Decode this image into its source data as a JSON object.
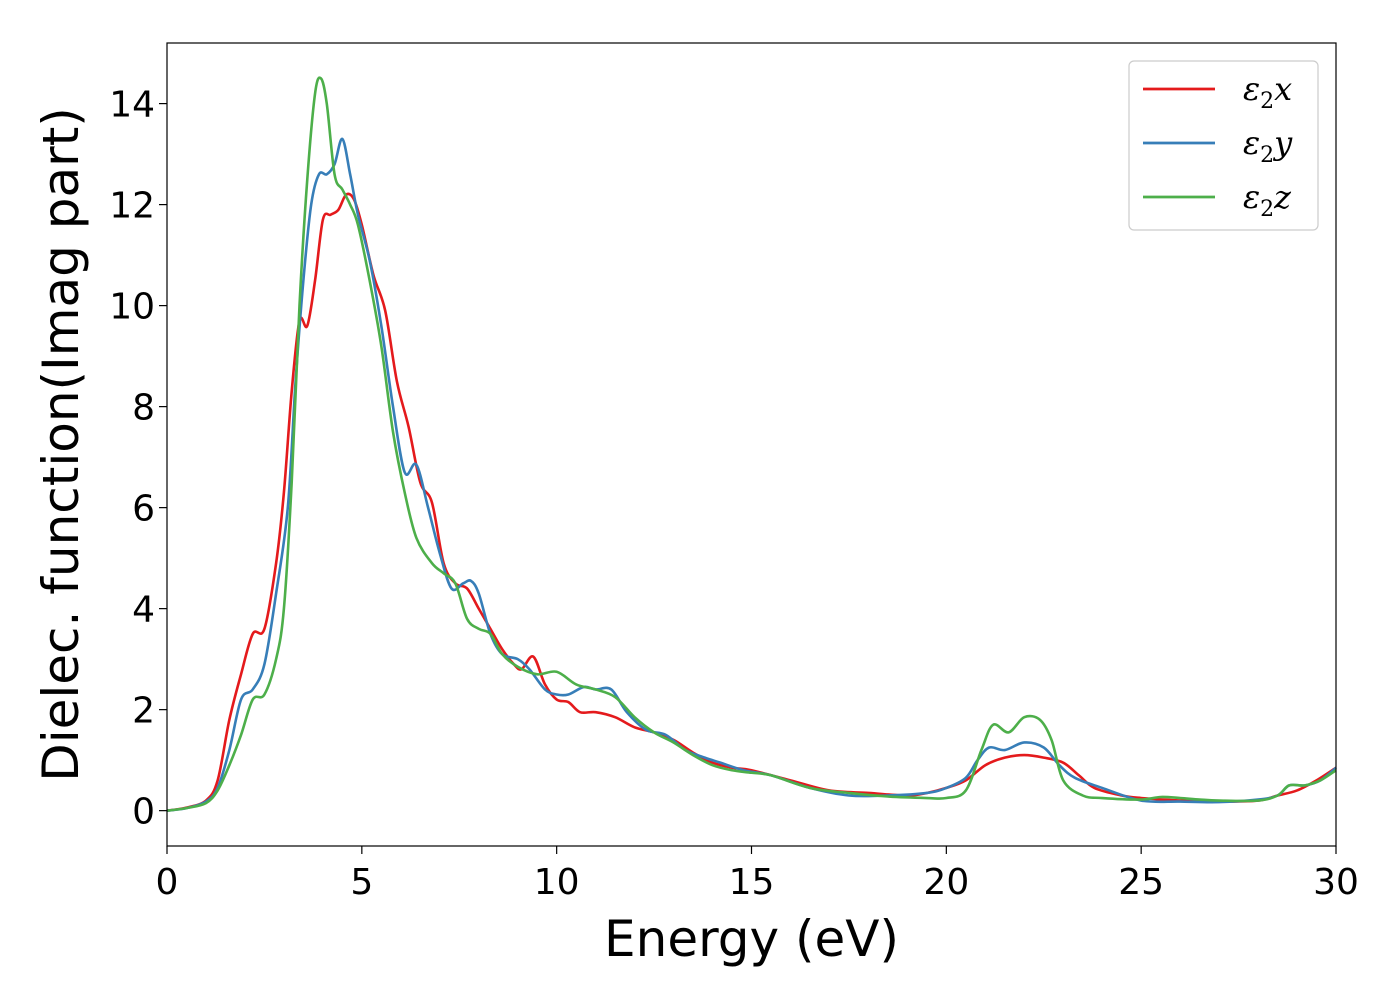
{
  "chart_data": {
    "type": "line",
    "title": "",
    "xlabel": "Energy (eV)",
    "ylabel": "Dielec. function(Imag part)",
    "xlim": [
      0,
      30
    ],
    "ylim": [
      -0.7,
      15.2
    ],
    "xticks": [
      0,
      5,
      10,
      15,
      20,
      25,
      30
    ],
    "yticks": [
      0,
      2,
      4,
      6,
      8,
      10,
      12,
      14
    ],
    "grid": false,
    "legend_position": "top-right",
    "series": [
      {
        "name": "ε₂x",
        "legend_main": "ε",
        "legend_sub": "2",
        "legend_suffix": "x",
        "color": "#e41a1c",
        "points": [
          [
            0,
            0
          ],
          [
            0.5,
            0.06
          ],
          [
            1.0,
            0.2
          ],
          [
            1.3,
            0.6
          ],
          [
            1.6,
            1.8
          ],
          [
            1.9,
            2.7
          ],
          [
            2.2,
            3.5
          ],
          [
            2.5,
            3.6
          ],
          [
            2.8,
            4.9
          ],
          [
            3.0,
            6.3
          ],
          [
            3.2,
            8.3
          ],
          [
            3.4,
            9.7
          ],
          [
            3.6,
            9.6
          ],
          [
            3.8,
            10.5
          ],
          [
            4.0,
            11.7
          ],
          [
            4.2,
            11.8
          ],
          [
            4.4,
            11.9
          ],
          [
            4.6,
            12.2
          ],
          [
            4.8,
            12.1
          ],
          [
            5.0,
            11.6
          ],
          [
            5.3,
            10.6
          ],
          [
            5.6,
            9.9
          ],
          [
            5.9,
            8.5
          ],
          [
            6.2,
            7.6
          ],
          [
            6.5,
            6.5
          ],
          [
            6.8,
            6.1
          ],
          [
            7.1,
            4.9
          ],
          [
            7.4,
            4.5
          ],
          [
            7.7,
            4.4
          ],
          [
            8.0,
            4.0
          ],
          [
            8.3,
            3.6
          ],
          [
            8.6,
            3.2
          ],
          [
            8.9,
            2.9
          ],
          [
            9.1,
            2.8
          ],
          [
            9.4,
            3.05
          ],
          [
            9.7,
            2.5
          ],
          [
            10.0,
            2.2
          ],
          [
            10.3,
            2.15
          ],
          [
            10.6,
            1.95
          ],
          [
            11.0,
            1.95
          ],
          [
            11.5,
            1.85
          ],
          [
            12.0,
            1.65
          ],
          [
            12.5,
            1.55
          ],
          [
            13.0,
            1.4
          ],
          [
            13.5,
            1.15
          ],
          [
            14.0,
            0.95
          ],
          [
            14.5,
            0.85
          ],
          [
            15.0,
            0.8
          ],
          [
            16.0,
            0.6
          ],
          [
            17.0,
            0.4
          ],
          [
            18.0,
            0.35
          ],
          [
            19.0,
            0.3
          ],
          [
            19.5,
            0.35
          ],
          [
            20.0,
            0.45
          ],
          [
            20.5,
            0.6
          ],
          [
            21.0,
            0.9
          ],
          [
            21.5,
            1.05
          ],
          [
            22.0,
            1.1
          ],
          [
            22.5,
            1.05
          ],
          [
            23.0,
            0.95
          ],
          [
            23.4,
            0.7
          ],
          [
            23.8,
            0.45
          ],
          [
            24.5,
            0.3
          ],
          [
            25.0,
            0.25
          ],
          [
            26.0,
            0.2
          ],
          [
            27.0,
            0.18
          ],
          [
            28.0,
            0.2
          ],
          [
            28.5,
            0.3
          ],
          [
            29.0,
            0.4
          ],
          [
            29.5,
            0.6
          ],
          [
            30.0,
            0.85
          ]
        ]
      },
      {
        "name": "ε₂y",
        "legend_main": "ε",
        "legend_sub": "2",
        "legend_suffix": "y",
        "color": "#377eb8",
        "points": [
          [
            0,
            0
          ],
          [
            0.5,
            0.05
          ],
          [
            1.0,
            0.18
          ],
          [
            1.3,
            0.45
          ],
          [
            1.6,
            1.2
          ],
          [
            1.9,
            2.2
          ],
          [
            2.2,
            2.4
          ],
          [
            2.5,
            2.9
          ],
          [
            2.8,
            4.3
          ],
          [
            3.1,
            6.0
          ],
          [
            3.3,
            8.5
          ],
          [
            3.5,
            10.5
          ],
          [
            3.7,
            12.0
          ],
          [
            3.9,
            12.6
          ],
          [
            4.1,
            12.6
          ],
          [
            4.3,
            12.8
          ],
          [
            4.5,
            13.3
          ],
          [
            4.7,
            12.6
          ],
          [
            4.9,
            11.8
          ],
          [
            5.2,
            10.9
          ],
          [
            5.5,
            9.6
          ],
          [
            5.8,
            8.0
          ],
          [
            6.1,
            6.7
          ],
          [
            6.4,
            6.85
          ],
          [
            6.7,
            6.0
          ],
          [
            7.0,
            5.1
          ],
          [
            7.3,
            4.4
          ],
          [
            7.6,
            4.5
          ],
          [
            7.8,
            4.55
          ],
          [
            8.0,
            4.3
          ],
          [
            8.3,
            3.5
          ],
          [
            8.6,
            3.1
          ],
          [
            9.0,
            3.0
          ],
          [
            9.3,
            2.8
          ],
          [
            9.7,
            2.4
          ],
          [
            10.0,
            2.3
          ],
          [
            10.3,
            2.3
          ],
          [
            10.7,
            2.45
          ],
          [
            11.0,
            2.4
          ],
          [
            11.4,
            2.4
          ],
          [
            11.8,
            1.95
          ],
          [
            12.3,
            1.6
          ],
          [
            12.8,
            1.5
          ],
          [
            13.3,
            1.2
          ],
          [
            13.8,
            1.05
          ],
          [
            14.2,
            0.95
          ],
          [
            14.8,
            0.8
          ],
          [
            15.5,
            0.7
          ],
          [
            16.5,
            0.45
          ],
          [
            17.5,
            0.3
          ],
          [
            18.5,
            0.3
          ],
          [
            19.5,
            0.35
          ],
          [
            20.0,
            0.45
          ],
          [
            20.5,
            0.65
          ],
          [
            20.8,
            1.0
          ],
          [
            21.1,
            1.25
          ],
          [
            21.5,
            1.2
          ],
          [
            22.0,
            1.35
          ],
          [
            22.5,
            1.25
          ],
          [
            22.9,
            0.9
          ],
          [
            23.3,
            0.65
          ],
          [
            24.0,
            0.45
          ],
          [
            25.0,
            0.2
          ],
          [
            26.0,
            0.18
          ],
          [
            27.0,
            0.17
          ],
          [
            28.0,
            0.22
          ],
          [
            28.5,
            0.3
          ],
          [
            28.8,
            0.5
          ],
          [
            29.2,
            0.5
          ],
          [
            29.6,
            0.6
          ],
          [
            30.0,
            0.85
          ]
        ]
      },
      {
        "name": "ε₂z",
        "legend_main": "ε",
        "legend_sub": "2",
        "legend_suffix": "z",
        "color": "#4daf4a",
        "points": [
          [
            0,
            0
          ],
          [
            0.5,
            0.05
          ],
          [
            1.0,
            0.15
          ],
          [
            1.3,
            0.4
          ],
          [
            1.6,
            0.9
          ],
          [
            1.9,
            1.5
          ],
          [
            2.2,
            2.2
          ],
          [
            2.5,
            2.3
          ],
          [
            2.8,
            3.0
          ],
          [
            3.0,
            4.0
          ],
          [
            3.2,
            6.5
          ],
          [
            3.4,
            10.0
          ],
          [
            3.6,
            12.5
          ],
          [
            3.8,
            14.2
          ],
          [
            3.95,
            14.5
          ],
          [
            4.1,
            14.0
          ],
          [
            4.3,
            12.6
          ],
          [
            4.5,
            12.3
          ],
          [
            4.7,
            12.0
          ],
          [
            4.9,
            11.6
          ],
          [
            5.2,
            10.5
          ],
          [
            5.5,
            9.2
          ],
          [
            5.8,
            7.5
          ],
          [
            6.1,
            6.3
          ],
          [
            6.4,
            5.4
          ],
          [
            6.8,
            4.9
          ],
          [
            7.1,
            4.7
          ],
          [
            7.4,
            4.5
          ],
          [
            7.7,
            3.8
          ],
          [
            8.0,
            3.6
          ],
          [
            8.3,
            3.5
          ],
          [
            8.6,
            3.1
          ],
          [
            9.0,
            2.85
          ],
          [
            9.5,
            2.7
          ],
          [
            10.0,
            2.75
          ],
          [
            10.5,
            2.5
          ],
          [
            11.0,
            2.4
          ],
          [
            11.5,
            2.25
          ],
          [
            12.0,
            1.85
          ],
          [
            12.5,
            1.55
          ],
          [
            13.0,
            1.35
          ],
          [
            13.5,
            1.1
          ],
          [
            14.0,
            0.9
          ],
          [
            14.5,
            0.8
          ],
          [
            15.0,
            0.75
          ],
          [
            15.5,
            0.7
          ],
          [
            16.5,
            0.45
          ],
          [
            17.5,
            0.35
          ],
          [
            18.5,
            0.28
          ],
          [
            19.5,
            0.25
          ],
          [
            20.0,
            0.25
          ],
          [
            20.5,
            0.4
          ],
          [
            20.9,
            1.2
          ],
          [
            21.2,
            1.7
          ],
          [
            21.6,
            1.55
          ],
          [
            22.0,
            1.85
          ],
          [
            22.4,
            1.8
          ],
          [
            22.7,
            1.4
          ],
          [
            23.0,
            0.6
          ],
          [
            23.5,
            0.3
          ],
          [
            24.0,
            0.25
          ],
          [
            25.0,
            0.22
          ],
          [
            25.5,
            0.27
          ],
          [
            26.0,
            0.25
          ],
          [
            26.5,
            0.22
          ],
          [
            27.0,
            0.2
          ],
          [
            28.0,
            0.2
          ],
          [
            28.5,
            0.3
          ],
          [
            28.8,
            0.5
          ],
          [
            29.2,
            0.5
          ],
          [
            29.6,
            0.6
          ],
          [
            30.0,
            0.8
          ]
        ]
      }
    ]
  }
}
